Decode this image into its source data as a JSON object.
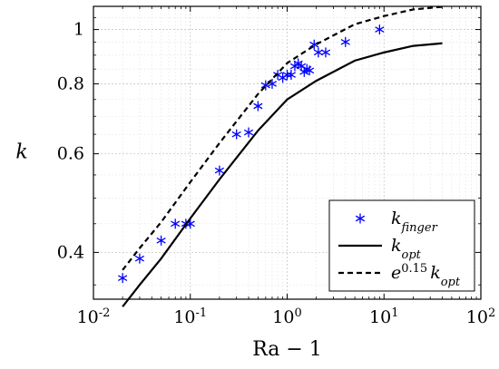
{
  "chart_data": {
    "type": "scatter",
    "title": "",
    "xlabel": "Ra − 1",
    "ylabel": "k",
    "xscale": "log",
    "yscale": "log",
    "xlim": [
      0.01,
      100
    ],
    "ylim": [
      0.33,
      1.1
    ],
    "grid": true,
    "legend_position": "bottom-right",
    "x_ticks": [
      {
        "value": 0.01,
        "base": "10",
        "exp": "-2"
      },
      {
        "value": 0.1,
        "base": "10",
        "exp": "-1"
      },
      {
        "value": 1,
        "base": "10",
        "exp": "0"
      },
      {
        "value": 10,
        "base": "10",
        "exp": "1"
      },
      {
        "value": 100,
        "base": "10",
        "exp": "2"
      }
    ],
    "y_ticks": [
      {
        "value": 0.4,
        "label": "0.4"
      },
      {
        "value": 0.6,
        "label": "0.6"
      },
      {
        "value": 0.8,
        "label": "0.8"
      },
      {
        "value": 1.0,
        "label": "1"
      }
    ],
    "series": [
      {
        "name": "k_finger",
        "legend_base": "k",
        "legend_sub": "finger",
        "style": "markers",
        "marker": "asterisk",
        "color": "#0000ff",
        "points": [
          [
            0.02,
            0.36
          ],
          [
            0.03,
            0.39
          ],
          [
            0.05,
            0.42
          ],
          [
            0.07,
            0.45
          ],
          [
            0.09,
            0.45
          ],
          [
            0.1,
            0.45
          ],
          [
            0.2,
            0.56
          ],
          [
            0.3,
            0.65
          ],
          [
            0.4,
            0.655
          ],
          [
            0.5,
            0.73
          ],
          [
            0.6,
            0.795
          ],
          [
            0.7,
            0.8
          ],
          [
            0.8,
            0.83
          ],
          [
            0.9,
            0.82
          ],
          [
            1.0,
            0.83
          ],
          [
            1.1,
            0.83
          ],
          [
            1.2,
            0.86
          ],
          [
            1.3,
            0.87
          ],
          [
            1.4,
            0.86
          ],
          [
            1.5,
            0.84
          ],
          [
            1.6,
            0.85
          ],
          [
            1.7,
            0.845
          ],
          [
            1.9,
            0.94
          ],
          [
            2.1,
            0.91
          ],
          [
            2.5,
            0.91
          ],
          [
            4.0,
            0.95
          ],
          [
            9.0,
            1.0
          ]
        ]
      },
      {
        "name": "k_opt",
        "legend_base": "k",
        "legend_sub": "opt",
        "style": "solid",
        "color": "#000000",
        "points": [
          [
            0.02,
            0.32
          ],
          [
            0.03,
            0.35
          ],
          [
            0.05,
            0.39
          ],
          [
            0.1,
            0.46
          ],
          [
            0.2,
            0.54
          ],
          [
            0.5,
            0.66
          ],
          [
            1.0,
            0.75
          ],
          [
            2.0,
            0.81
          ],
          [
            5.0,
            0.88
          ],
          [
            10.0,
            0.91
          ],
          [
            20.0,
            0.935
          ],
          [
            40.0,
            0.945
          ]
        ]
      },
      {
        "name": "e^0.15 k_opt",
        "legend_base": "e",
        "legend_sup": "0.15",
        "legend_tail_base": "k",
        "legend_tail_sub": "opt",
        "style": "dashed",
        "color": "#000000",
        "points": [
          [
            0.02,
            0.372
          ],
          [
            0.03,
            0.407
          ],
          [
            0.05,
            0.453
          ],
          [
            0.1,
            0.534
          ],
          [
            0.2,
            0.627
          ],
          [
            0.5,
            0.767
          ],
          [
            1.0,
            0.871
          ],
          [
            2.0,
            0.941
          ],
          [
            5.0,
            1.022
          ],
          [
            10.0,
            1.057
          ],
          [
            20.0,
            1.086
          ],
          [
            40.0,
            1.098
          ]
        ]
      }
    ]
  }
}
